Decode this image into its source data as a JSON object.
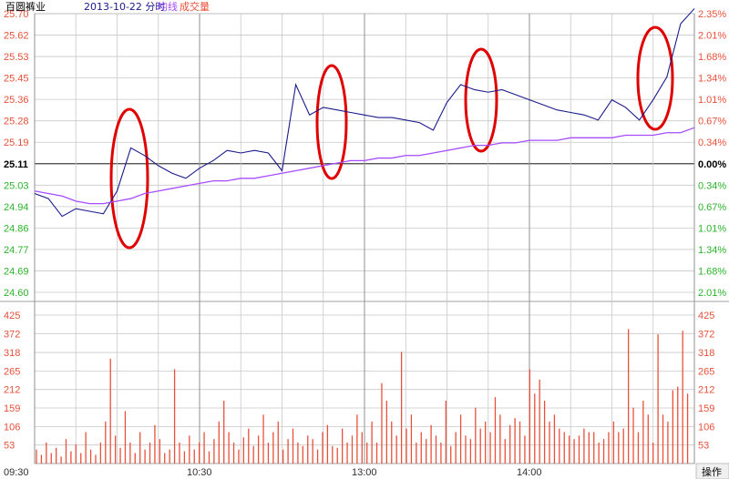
{
  "header": {
    "stock_name": "百圆裤业",
    "date_mode": "2013-10-22 分时",
    "legend_avg": "均线",
    "legend_volume": "成交量"
  },
  "colors": {
    "price_line": "#1a1a8c",
    "avg_line": "#a64dff",
    "volume_bar": "#e8503a",
    "up_text": "#e8503a",
    "down_text": "#2bb32b",
    "base_text": "#000000",
    "grid": "#c8c8c8",
    "annotation": "#e00000"
  },
  "footer": {
    "operate_label": "操作"
  },
  "chart_data": [
    {
      "type": "line",
      "title": "",
      "prev_close": 25.11,
      "ylim": [
        24.6,
        25.7
      ],
      "price_ticks": [
        "25.70",
        "25.62",
        "25.53",
        "25.45",
        "25.36",
        "25.28",
        "25.19",
        "25.11",
        "25.03",
        "24.94",
        "24.86",
        "24.77",
        "24.69",
        "24.60"
      ],
      "pct_ticks": [
        "2.35%",
        "2.01%",
        "1.68%",
        "1.34%",
        "1.01%",
        "0.67%",
        "0.34%",
        "0.00%",
        "0.34%",
        "0.67%",
        "1.01%",
        "1.34%",
        "1.68%",
        "2.01%"
      ],
      "x_ticks": [
        "09:30",
        "10:30",
        "13:00",
        "14:00"
      ],
      "series": [
        {
          "role": "price",
          "x": [
            0,
            5,
            10,
            15,
            20,
            25,
            30,
            35,
            40,
            45,
            50,
            55,
            60,
            65,
            70,
            75,
            80,
            85,
            90,
            95,
            100,
            105,
            110,
            115,
            120,
            125,
            130,
            135,
            140,
            145,
            150,
            155,
            160,
            165,
            170,
            175,
            180,
            185,
            190,
            195,
            200,
            205,
            210,
            215,
            220,
            225,
            230,
            235,
            240
          ],
          "values": [
            24.99,
            24.97,
            24.9,
            24.93,
            24.92,
            24.91,
            25.0,
            25.17,
            25.14,
            25.1,
            25.07,
            25.05,
            25.09,
            25.12,
            25.16,
            25.15,
            25.16,
            25.15,
            25.08,
            25.42,
            25.3,
            25.33,
            25.32,
            25.31,
            25.3,
            25.29,
            25.29,
            25.28,
            25.27,
            25.24,
            25.35,
            25.42,
            25.4,
            25.39,
            25.4,
            25.38,
            25.36,
            25.34,
            25.32,
            25.31,
            25.3,
            25.28,
            25.36,
            25.33,
            25.28,
            25.36,
            25.45,
            25.66,
            25.72
          ]
        },
        {
          "role": "average",
          "x": [
            0,
            5,
            10,
            15,
            20,
            25,
            30,
            35,
            40,
            45,
            50,
            55,
            60,
            65,
            70,
            75,
            80,
            85,
            90,
            95,
            100,
            105,
            110,
            115,
            120,
            125,
            130,
            135,
            140,
            145,
            150,
            155,
            160,
            165,
            170,
            175,
            180,
            185,
            190,
            195,
            200,
            205,
            210,
            215,
            220,
            225,
            230,
            235,
            240
          ],
          "values": [
            25.0,
            24.99,
            24.98,
            24.96,
            24.95,
            24.95,
            24.96,
            24.97,
            24.99,
            25.0,
            25.01,
            25.02,
            25.03,
            25.04,
            25.04,
            25.05,
            25.05,
            25.06,
            25.07,
            25.08,
            25.09,
            25.1,
            25.11,
            25.12,
            25.12,
            25.13,
            25.13,
            25.14,
            25.14,
            25.15,
            25.16,
            25.17,
            25.18,
            25.18,
            25.19,
            25.19,
            25.2,
            25.2,
            25.2,
            25.21,
            25.21,
            25.21,
            25.21,
            25.22,
            25.22,
            25.22,
            25.23,
            25.23,
            25.25
          ]
        }
      ]
    },
    {
      "type": "bar",
      "title": "",
      "ylim": [
        0,
        425
      ],
      "y_ticks": [
        "425",
        "372",
        "318",
        "265",
        "212",
        "159",
        "106",
        "53"
      ],
      "values": [
        40,
        25,
        60,
        30,
        45,
        20,
        70,
        35,
        55,
        30,
        90,
        40,
        25,
        60,
        120,
        300,
        80,
        45,
        150,
        60,
        30,
        90,
        40,
        60,
        110,
        70,
        30,
        40,
        270,
        60,
        35,
        80,
        40,
        60,
        90,
        35,
        70,
        120,
        180,
        90,
        60,
        40,
        75,
        100,
        50,
        80,
        140,
        60,
        90,
        120,
        40,
        70,
        100,
        60,
        50,
        80,
        70,
        40,
        90,
        110,
        50,
        45,
        100,
        60,
        80,
        140,
        90,
        60,
        120,
        60,
        230,
        180,
        120,
        80,
        320,
        100,
        140,
        60,
        90,
        70,
        110,
        80,
        60,
        180,
        50,
        90,
        140,
        80,
        70,
        160,
        100,
        120,
        90,
        190,
        140,
        70,
        110,
        130,
        120,
        80,
        270,
        200,
        240,
        180,
        120,
        140,
        100,
        90,
        80,
        70,
        80,
        100,
        90,
        90,
        60,
        70,
        90,
        120,
        90,
        100,
        385,
        160,
        90,
        180,
        140,
        60,
        370,
        140,
        120,
        210,
        220,
        380,
        200
      ]
    }
  ]
}
